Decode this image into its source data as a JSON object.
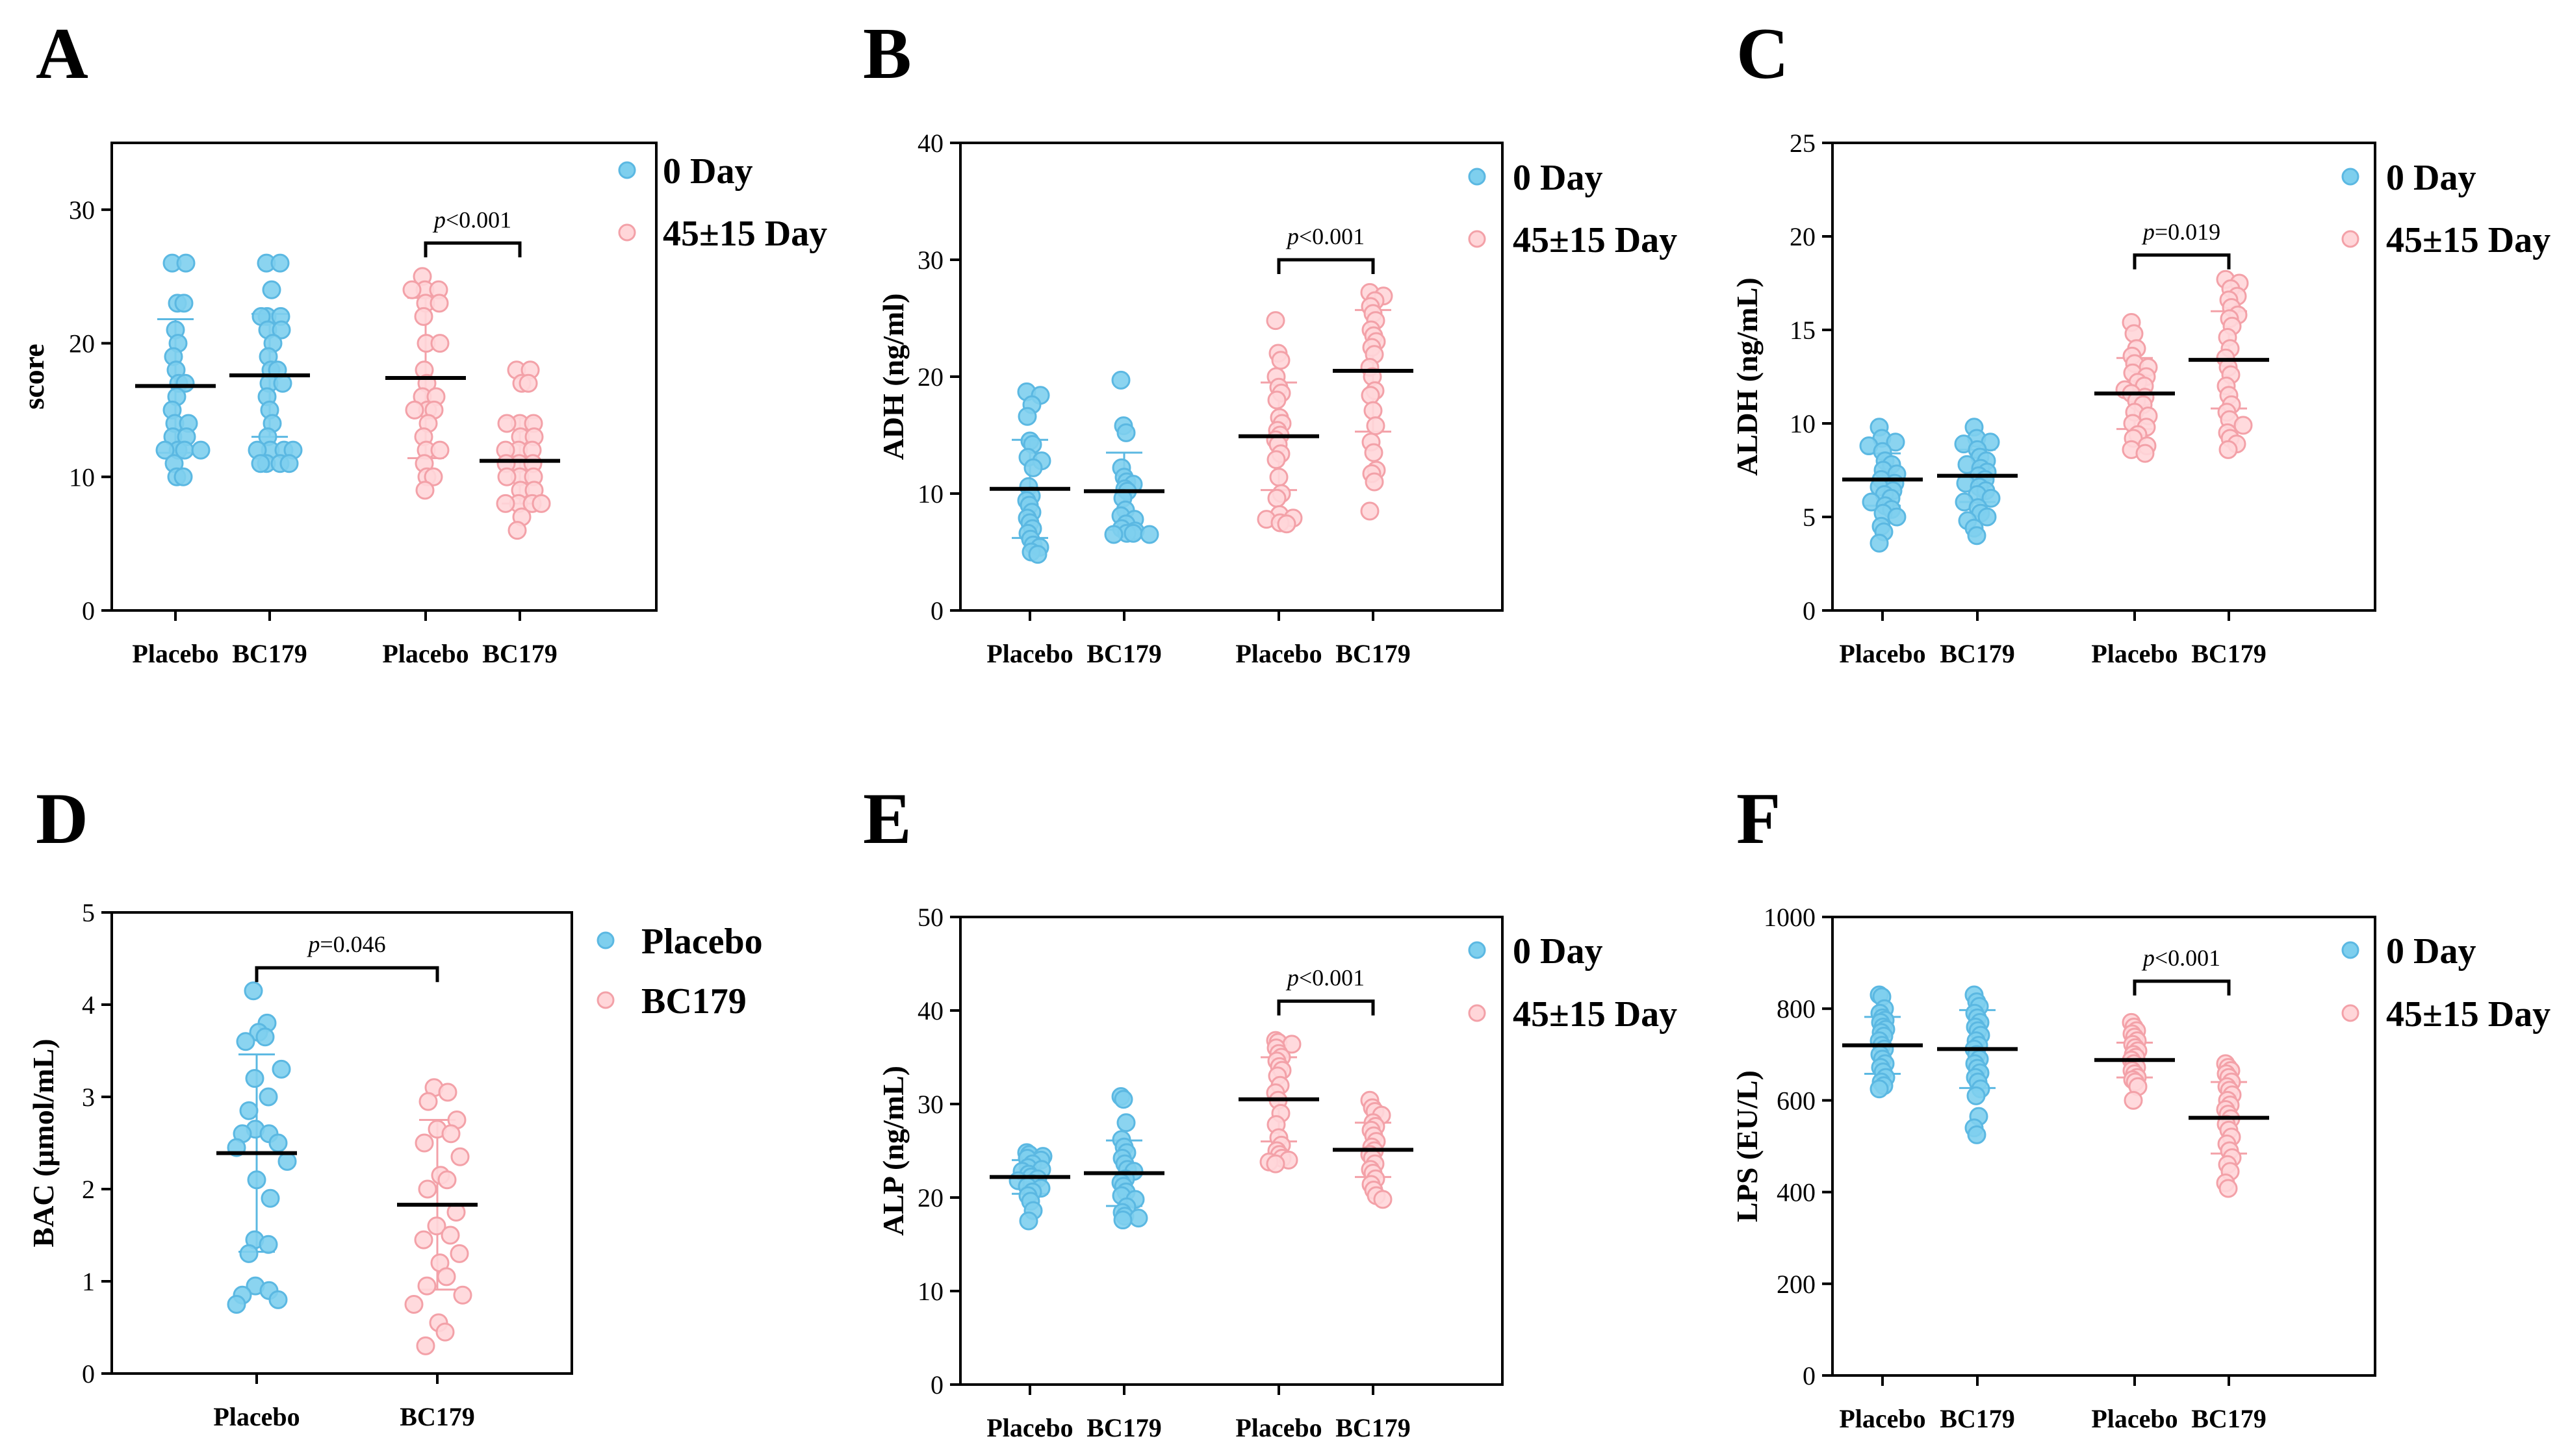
{
  "colors": {
    "day0": "#7ECFEE",
    "day0_edge": "#5BB8E2",
    "day45": "#FFD6D9",
    "day45_edge": "#F3A1A8",
    "axis": "#000000"
  },
  "chart_data": [
    {
      "letter": "A",
      "type": "scatter",
      "ylabel": "score",
      "ylim": [
        0,
        35
      ],
      "yticks": [
        0,
        10,
        20,
        30
      ],
      "categories": [
        "Placebo",
        "BC179",
        "Placebo",
        "BC179"
      ],
      "legend": [
        "0 Day",
        "45±15 Day"
      ],
      "series": [
        {
          "name": "0 Day",
          "group": "Placebo",
          "mean": 16.8,
          "sd": 5.0,
          "values": [
            26,
            26,
            23,
            23,
            21,
            20,
            19,
            18,
            17,
            17,
            16,
            15,
            14,
            14,
            13,
            13,
            12,
            12,
            12,
            12,
            11,
            10,
            10
          ]
        },
        {
          "name": "0 Day",
          "group": "BC179",
          "mean": 17.6,
          "sd": 4.6,
          "values": [
            26,
            26,
            24,
            22,
            22,
            22,
            21,
            21,
            20,
            19,
            18,
            18,
            17,
            17,
            16,
            15,
            14,
            13,
            12,
            12,
            12,
            12,
            11,
            11,
            11,
            11
          ]
        },
        {
          "name": "45±15 Day",
          "group": "Placebo",
          "mean": 17.4,
          "sd": 6.0,
          "values": [
            25,
            24,
            24,
            24,
            23,
            23,
            22,
            20,
            20,
            18,
            17,
            16,
            16,
            15,
            15,
            15,
            14,
            13,
            12,
            12,
            11,
            10,
            10,
            9
          ]
        },
        {
          "name": "45±15 Day",
          "group": "BC179",
          "mean": 11.2,
          "sd": 3.2,
          "values": [
            18,
            18,
            17,
            17,
            14,
            14,
            14,
            13,
            13,
            12,
            12,
            12,
            11,
            11,
            11,
            10,
            10,
            10,
            9,
            9,
            8,
            8,
            8,
            8,
            7,
            6
          ]
        }
      ],
      "comparisons": [
        {
          "between": [
            2,
            3
          ],
          "p_prefix": "p",
          "p_rest": "<0.001",
          "y": 27.5
        }
      ]
    },
    {
      "letter": "B",
      "type": "scatter",
      "ylabel": "ADH (ng/ml)",
      "ylim": [
        0,
        40
      ],
      "yticks": [
        0,
        10,
        20,
        30,
        40
      ],
      "categories": [
        "Placebo",
        "BC179",
        "Placebo",
        "BC179"
      ],
      "legend": [
        "0 Day",
        "45±15 Day"
      ],
      "series": [
        {
          "name": "0 Day",
          "group": "Placebo",
          "mean": 10.4,
          "sd": 4.2,
          "values": [
            18.7,
            18.4,
            17.6,
            16.6,
            14.5,
            14.2,
            13.1,
            12.8,
            12.2,
            10.6,
            9.8,
            9.4,
            9.0,
            8.4,
            7.9,
            7.5,
            7.0,
            6.6,
            6.1,
            5.6,
            5.4,
            5.0,
            4.8
          ]
        },
        {
          "name": "0 Day",
          "group": "BC179",
          "mean": 10.2,
          "sd": 3.3,
          "values": [
            19.7,
            15.8,
            15.2,
            12.2,
            11.4,
            11.0,
            10.8,
            10.4,
            10.2,
            9.6,
            8.6,
            8.1,
            7.8,
            7.4,
            7.0,
            6.8,
            6.6,
            6.6,
            6.5,
            6.5
          ]
        },
        {
          "name": "45±15 Day",
          "group": "Placebo",
          "mean": 14.9,
          "sd": 4.6,
          "values": [
            24.8,
            22.0,
            21.4,
            20.0,
            19.1,
            18.6,
            18.0,
            16.5,
            16.0,
            15.4,
            15.0,
            14.6,
            14.2,
            13.4,
            12.9,
            11.4,
            10.0,
            9.6,
            8.2,
            7.9,
            7.8,
            7.5,
            7.4
          ]
        },
        {
          "name": "45±15 Day",
          "group": "BC179",
          "mean": 20.5,
          "sd": 5.2,
          "values": [
            27.2,
            26.9,
            26.5,
            26.0,
            25.4,
            24.8,
            24.0,
            23.5,
            23.0,
            22.5,
            21.9,
            20.8,
            20.0,
            18.8,
            18.4,
            17.1,
            15.8,
            14.4,
            13.5,
            12.0,
            11.7,
            11.0,
            8.5
          ]
        }
      ],
      "comparisons": [
        {
          "between": [
            2,
            3
          ],
          "p_prefix": "p",
          "p_rest": "<0.001",
          "y": 30.0
        }
      ]
    },
    {
      "letter": "C",
      "type": "scatter",
      "ylabel": "ALDH (ng/mL)",
      "ylim": [
        0,
        25
      ],
      "yticks": [
        0,
        5,
        10,
        15,
        20,
        25
      ],
      "categories": [
        "Placebo",
        "BC179",
        "Placebo",
        "BC179"
      ],
      "legend": [
        "0 Day",
        "45±15 Day"
      ],
      "series": [
        {
          "name": "0 Day",
          "group": "Placebo",
          "mean": 7.0,
          "sd": 1.4,
          "values": [
            9.8,
            9.2,
            9.0,
            8.8,
            8.5,
            8.0,
            7.8,
            7.5,
            7.3,
            7.0,
            6.8,
            6.6,
            6.4,
            6.2,
            6.0,
            5.8,
            5.6,
            5.4,
            5.2,
            5.0,
            4.5,
            4.2,
            3.6
          ]
        },
        {
          "name": "0 Day",
          "group": "BC179",
          "mean": 7.2,
          "sd": 1.4,
          "values": [
            9.8,
            9.2,
            9.0,
            8.9,
            8.6,
            8.2,
            8.0,
            7.8,
            7.6,
            7.4,
            7.2,
            7.0,
            6.8,
            6.6,
            6.4,
            6.2,
            6.0,
            5.8,
            5.5,
            5.2,
            5.0,
            4.8,
            4.4,
            4.0
          ]
        },
        {
          "name": "45±15 Day",
          "group": "Placebo",
          "mean": 11.6,
          "sd": 1.9,
          "values": [
            15.4,
            14.8,
            14.0,
            13.6,
            13.2,
            13.0,
            12.7,
            12.5,
            12.2,
            12.0,
            11.8,
            11.6,
            11.4,
            11.2,
            11.0,
            10.6,
            10.4,
            10.0,
            9.8,
            9.4,
            9.2,
            8.8,
            8.6,
            8.4
          ]
        },
        {
          "name": "45±15 Day",
          "group": "BC179",
          "mean": 13.4,
          "sd": 2.6,
          "values": [
            17.7,
            17.5,
            17.2,
            16.8,
            16.6,
            16.2,
            15.8,
            15.6,
            15.2,
            14.6,
            14.0,
            13.5,
            13.0,
            12.6,
            12.0,
            11.5,
            11.0,
            10.6,
            10.2,
            9.9,
            9.5,
            9.2,
            8.9,
            8.6
          ]
        }
      ],
      "comparisons": [
        {
          "between": [
            2,
            3
          ],
          "p_prefix": "p",
          "p_rest": "=0.019",
          "y": 19.0
        }
      ]
    },
    {
      "letter": "D",
      "type": "scatter",
      "ylabel": "BAC (μmol/mL)",
      "ylim": [
        0,
        5
      ],
      "yticks": [
        0,
        1,
        2,
        3,
        4,
        5
      ],
      "categories": [
        "Placebo",
        "BC179"
      ],
      "legend": [
        "Placebo",
        "BC179"
      ],
      "series": [
        {
          "name": "Placebo",
          "group": "Placebo",
          "mean": 2.39,
          "sd": 1.07,
          "values": [
            4.15,
            3.8,
            3.7,
            3.65,
            3.6,
            3.3,
            3.2,
            3.0,
            2.85,
            2.65,
            2.6,
            2.6,
            2.5,
            2.45,
            2.3,
            2.1,
            1.9,
            1.45,
            1.4,
            1.3,
            0.95,
            0.9,
            0.85,
            0.8,
            0.75
          ]
        },
        {
          "name": "BC179",
          "group": "BC179",
          "mean": 1.83,
          "sd": 0.92,
          "values": [
            3.1,
            3.05,
            2.95,
            2.75,
            2.65,
            2.6,
            2.5,
            2.35,
            2.15,
            2.1,
            2.0,
            1.75,
            1.6,
            1.5,
            1.45,
            1.3,
            1.2,
            1.05,
            0.95,
            0.85,
            0.75,
            0.55,
            0.45,
            0.3
          ]
        }
      ],
      "comparisons": [
        {
          "between": [
            0,
            1
          ],
          "p_prefix": "p",
          "p_rest": "=0.046",
          "y": 4.4
        }
      ]
    },
    {
      "letter": "E",
      "type": "scatter",
      "ylabel": "ALP (ng/mL)",
      "ylim": [
        0,
        50
      ],
      "yticks": [
        0,
        10,
        20,
        30,
        40,
        50
      ],
      "categories": [
        "Placebo",
        "BC179",
        "Placebo",
        "BC179"
      ],
      "legend": [
        "0 Day",
        "45±15 Day"
      ],
      "series": [
        {
          "name": "0 Day",
          "group": "Placebo",
          "mean": 22.2,
          "sd": 1.8,
          "values": [
            24.8,
            24.6,
            24.4,
            24.2,
            24.0,
            23.6,
            23.2,
            23.0,
            22.8,
            22.5,
            22.2,
            22.0,
            21.8,
            21.5,
            21.2,
            21.0,
            20.6,
            20.2,
            19.6,
            18.6,
            17.5
          ]
        },
        {
          "name": "0 Day",
          "group": "BC179",
          "mean": 22.6,
          "sd": 3.5,
          "values": [
            30.8,
            30.5,
            28.0,
            26.2,
            25.4,
            24.8,
            24.2,
            23.6,
            23.0,
            22.8,
            22.0,
            21.6,
            21.2,
            20.6,
            20.2,
            19.8,
            19.0,
            18.4,
            18.0,
            17.8,
            17.6
          ]
        },
        {
          "name": "45±15 Day",
          "group": "Placebo",
          "mean": 30.5,
          "sd": 4.5,
          "values": [
            36.8,
            36.6,
            36.4,
            36.0,
            35.4,
            35.0,
            34.6,
            34.0,
            33.6,
            33.0,
            32.0,
            31.2,
            30.4,
            29.0,
            27.8,
            26.4,
            25.6,
            25.0,
            24.6,
            24.2,
            24.0,
            23.8,
            23.6
          ]
        },
        {
          "name": "45±15 Day",
          "group": "BC179",
          "mean": 25.1,
          "sd": 2.9,
          "values": [
            30.4,
            29.6,
            29.2,
            28.8,
            28.0,
            27.6,
            27.2,
            26.6,
            26.0,
            25.4,
            25.0,
            24.6,
            24.2,
            23.6,
            23.0,
            22.6,
            22.0,
            21.4,
            20.8,
            20.2,
            19.8
          ]
        }
      ],
      "comparisons": [
        {
          "between": [
            2,
            3
          ],
          "p_prefix": "p",
          "p_rest": "<0.001",
          "y": 41.0
        }
      ]
    },
    {
      "letter": "F",
      "type": "scatter",
      "ylabel": "LPS (EU/L)",
      "ylim": [
        0,
        1000
      ],
      "yticks": [
        0,
        200,
        400,
        600,
        800,
        1000
      ],
      "categories": [
        "Placebo",
        "BC179",
        "Placebo",
        "BC179"
      ],
      "legend": [
        "0 Day",
        "45±15 Day"
      ],
      "series": [
        {
          "name": "0 Day",
          "group": "Placebo",
          "mean": 720,
          "sd": 62,
          "values": [
            830,
            826,
            800,
            790,
            780,
            775,
            770,
            760,
            755,
            748,
            740,
            730,
            720,
            712,
            700,
            690,
            680,
            672,
            662,
            650,
            640,
            632,
            625
          ]
        },
        {
          "name": "0 Day",
          "group": "BC179",
          "mean": 712,
          "sd": 85,
          "values": [
            830,
            815,
            805,
            790,
            780,
            770,
            760,
            752,
            742,
            730,
            720,
            712,
            700,
            690,
            680,
            670,
            660,
            650,
            640,
            625,
            610,
            565,
            540,
            525
          ]
        },
        {
          "name": "45±15 Day",
          "group": "Placebo",
          "mean": 688,
          "sd": 38,
          "values": [
            770,
            760,
            752,
            745,
            738,
            730,
            722,
            715,
            708,
            700,
            694,
            688,
            680,
            672,
            665,
            658,
            650,
            645,
            640,
            630,
            600
          ]
        },
        {
          "name": "45±15 Day",
          "group": "BC179",
          "mean": 562,
          "sd": 78,
          "values": [
            680,
            672,
            665,
            658,
            650,
            640,
            630,
            622,
            612,
            600,
            590,
            580,
            570,
            560,
            548,
            535,
            520,
            505,
            490,
            475,
            460,
            445,
            420,
            408
          ]
        }
      ],
      "comparisons": [
        {
          "between": [
            2,
            3
          ],
          "p_prefix": "p",
          "p_rest": "<0.001",
          "y": 860
        }
      ]
    }
  ]
}
